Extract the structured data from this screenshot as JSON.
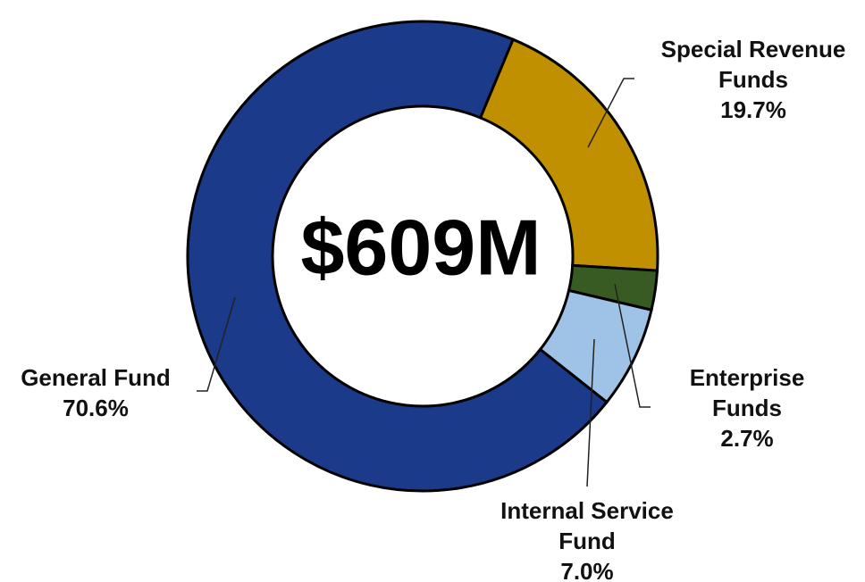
{
  "chart_data": {
    "type": "donut",
    "center_label": "$609M",
    "categories": [
      "Special Revenue Funds",
      "Enterprise Funds",
      "Internal Service Fund",
      "General Fund"
    ],
    "values": [
      19.7,
      2.7,
      7.0,
      70.6
    ],
    "value_labels": [
      "19.7%",
      "2.7%",
      "7.0%",
      "70.6%"
    ],
    "colors": [
      "#c09000",
      "#385a23",
      "#9fc3e6",
      "#1c3a8a"
    ]
  }
}
